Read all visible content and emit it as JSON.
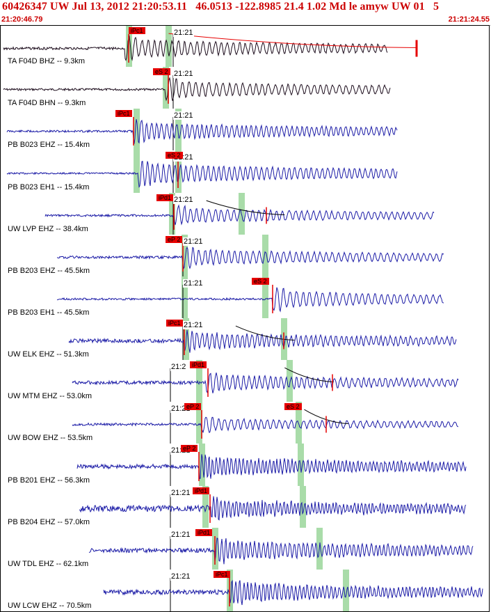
{
  "header": {
    "title": "60426347 UW Jul 13, 2012 21:20:53.11   46.0513 -122.8985 21.4 1.02 Md le amyw UW 01   5",
    "start_time": "21:20:46.79",
    "end_time": "21:21:24.55"
  },
  "colors": {
    "header_text": "#cc0000",
    "trace_primary": "#1a1aa6",
    "trace_alt": "#1a0a1a",
    "pick_marker": "#e60000",
    "window_band": "#a9dca9",
    "coda_curve": "#000000",
    "grid_line": "#000000"
  },
  "traces": [
    {
      "label": "TA F04D BHZ -- 9.3km",
      "clock": "21:21",
      "clock_pos": 0.361,
      "color": "trace_alt",
      "pick": {
        "label": "iPc1",
        "pos": 0.262
      },
      "pick_line": 0.262,
      "green": [
        0.262,
        0.343
      ],
      "signal": {
        "start": 0.0,
        "end": 0.79,
        "onset": 0.254,
        "amp": 0.36,
        "noise": 0.06,
        "freq": 0.9,
        "seed": 3
      },
      "coda": {
        "from": 0.343,
        "to": 0.85
      },
      "red_bar": 0.85
    },
    {
      "label": "TA F04D BHN -- 9.3km",
      "clock": "21:21",
      "clock_pos": 0.361,
      "color": "trace_alt",
      "pick": {
        "label": "eS 2",
        "pos": 0.311
      },
      "pick_line": 0.343,
      "green": [
        0.336
      ],
      "signal": {
        "start": 0.0,
        "end": 0.795,
        "onset": 0.336,
        "amp": 0.34,
        "noise": 0.05,
        "freq": 0.85,
        "seed": 7
      }
    },
    {
      "label": "PB B023 EHZ -- 15.4km",
      "clock": "21:21",
      "clock_pos": 0.361,
      "color": "trace_primary",
      "pick": {
        "label": "iPc1",
        "pos": 0.234
      },
      "pick_line": 0.272,
      "green": [
        0.277,
        0.362
      ],
      "signal": {
        "start": 0.007,
        "end": 0.81,
        "onset": 0.27,
        "amp": 0.36,
        "noise": 0.05,
        "freq": 1.1,
        "seed": 11
      }
    },
    {
      "label": "PB B023 EH1 -- 15.4km",
      "clock": "21:21",
      "clock_pos": 0.361,
      "color": "trace_primary",
      "pick": {
        "label": "eS 2",
        "pos": 0.337
      },
      "pick_line": 0.362,
      "green": [
        0.277,
        0.362
      ],
      "signal": {
        "start": 0.007,
        "end": 0.81,
        "onset": 0.28,
        "amp": 0.4,
        "noise": 0.04,
        "freq": 1.0,
        "seed": 13
      }
    },
    {
      "label": "UW LVP EHZ -- 38.4km",
      "clock": "21:21",
      "clock_pos": 0.361,
      "color": "trace_primary",
      "pick": {
        "label": "iPd1",
        "pos": 0.318
      },
      "pick_line": 0.354,
      "green": [
        0.349,
        0.492
      ],
      "signal": {
        "start": 0.085,
        "end": 0.885,
        "onset": 0.354,
        "amp": 0.3,
        "noise": 0.05,
        "freq": 0.9,
        "seed": 17
      },
      "coda": {
        "from": 0.42,
        "to": 0.58
      },
      "red_bar": 0.542
    },
    {
      "label": "PB B203 EHZ -- 45.5km",
      "clock": "21:21",
      "clock_pos": 0.38,
      "color": "trace_primary",
      "pick": {
        "label": "eP 2",
        "pos": 0.336
      },
      "pick_line": 0.372,
      "green": [
        0.375,
        0.54
      ],
      "signal": {
        "start": 0.11,
        "end": 0.905,
        "onset": 0.372,
        "amp": 0.32,
        "noise": 0.06,
        "freq": 0.9,
        "seed": 19
      }
    },
    {
      "label": "PB B203 EH1 -- 45.5km",
      "clock": "21:21",
      "clock_pos": 0.38,
      "color": "trace_primary",
      "pick": {
        "label": "eS 2",
        "pos": 0.513
      },
      "pick_line": 0.556,
      "green": [
        0.375,
        0.54
      ],
      "signal": {
        "start": 0.11,
        "end": 0.905,
        "onset": 0.555,
        "amp": 0.36,
        "noise": 0.05,
        "freq": 0.85,
        "seed": 23
      }
    },
    {
      "label": "UW ELK EHZ -- 51.3km",
      "clock": "21:21",
      "clock_pos": 0.38,
      "color": "trace_primary",
      "pick": {
        "label": "iPc1",
        "pos": 0.338
      },
      "pick_line": 0.375,
      "green": [
        0.378,
        0.578
      ],
      "signal": {
        "start": 0.133,
        "end": 0.93,
        "onset": 0.375,
        "amp": 0.34,
        "noise": 0.09,
        "freq": 1.1,
        "seed": 29
      },
      "coda": {
        "from": 0.48,
        "to": 0.6
      },
      "red_bar": 0.578
    },
    {
      "label": "UW MTM EHZ -- 53.0km",
      "clock": "21:2",
      "clock_pos": 0.355,
      "color": "trace_primary",
      "pick": {
        "label": "iPd1",
        "pos": 0.387
      },
      "pick_line": 0.423,
      "green": [
        0.405,
        0.59
      ],
      "signal": {
        "start": 0.14,
        "end": 0.935,
        "onset": 0.42,
        "amp": 0.32,
        "noise": 0.08,
        "freq": 1.0,
        "seed": 31
      },
      "coda": {
        "from": 0.58,
        "to": 0.68
      },
      "red_bar": 0.677
    },
    {
      "label": "UW BOW EHZ -- 53.5km",
      "clock": "21:21",
      "clock_pos": 0.355,
      "color": "trace_primary",
      "pick": {
        "label": "eP 2",
        "pos": 0.375
      },
      "pick_line": 0.41,
      "green": [
        0.405,
        0.608
      ],
      "signal": {
        "start": 0.14,
        "end": 0.935,
        "onset": 0.41,
        "amp": 0.24,
        "noise": 0.06,
        "freq": 0.9,
        "seed": 37
      },
      "pick2": {
        "label": "eS 2",
        "pos": 0.58
      },
      "coda": {
        "from": 0.62,
        "to": 0.71
      },
      "red_bar": 0.665
    },
    {
      "label": "PB B201 EHZ -- 56.3km",
      "clock": "21:21",
      "clock_pos": 0.355,
      "color": "trace_primary",
      "pick": {
        "label": "eP 2",
        "pos": 0.368
      },
      "pick_line": 0.405,
      "green": [
        0.411,
        0.612
      ],
      "signal": {
        "start": 0.15,
        "end": 0.95,
        "onset": 0.405,
        "amp": 0.38,
        "noise": 0.1,
        "freq": 1.4,
        "seed": 41
      }
    },
    {
      "label": "PB B204 EHZ -- 57.0km",
      "clock": "21:21",
      "clock_pos": 0.355,
      "color": "trace_primary",
      "pick": {
        "label": "iPd1",
        "pos": 0.392
      },
      "pick_line": 0.428,
      "green": [
        0.418,
        0.616
      ],
      "signal": {
        "start": 0.155,
        "end": 0.95,
        "onset": 0.43,
        "amp": 0.34,
        "noise": 0.15,
        "freq": 1.5,
        "seed": 43
      }
    },
    {
      "label": "UW TDL EHZ -- 62.1km",
      "clock": "21:21",
      "clock_pos": 0.355,
      "color": "trace_primary",
      "pick": {
        "label": "iPd1",
        "pos": 0.398
      },
      "pick_line": 0.437,
      "green": [
        0.437,
        0.651
      ],
      "signal": {
        "start": 0.175,
        "end": 0.965,
        "onset": 0.437,
        "amp": 0.4,
        "noise": 0.1,
        "freq": 1.3,
        "seed": 47
      }
    },
    {
      "label": "UW LCW EHZ -- 70.5km",
      "clock": "21:21",
      "clock_pos": 0.355,
      "color": "trace_primary",
      "pick": {
        "label": "iPc1",
        "pos": 0.434
      },
      "pick_line": 0.468,
      "green": [
        0.467,
        0.705
      ],
      "signal": {
        "start": 0.205,
        "end": 0.985,
        "onset": 0.468,
        "amp": 0.38,
        "noise": 0.11,
        "freq": 1.4,
        "seed": 53
      }
    }
  ]
}
